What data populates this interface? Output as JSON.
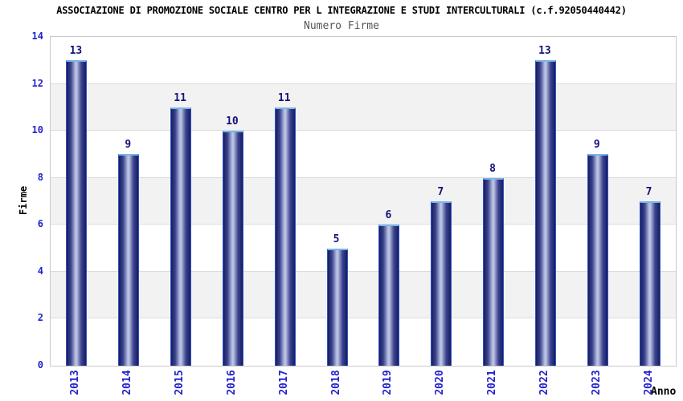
{
  "header": {
    "title": "ASSOCIAZIONE DI PROMOZIONE SOCIALE CENTRO PER L INTEGRAZIONE E STUDI INTERCULTURALI (c.f.92050440442)",
    "subtitle": "Numero Firme"
  },
  "chart_data": {
    "type": "bar",
    "title": "ASSOCIAZIONE DI PROMOZIONE SOCIALE CENTRO PER L INTEGRAZIONE E STUDI INTERCULTURALI (c.f.92050440442)",
    "subtitle": "Numero Firme",
    "categories": [
      "2013",
      "2014",
      "2015",
      "2016",
      "2017",
      "2018",
      "2019",
      "2020",
      "2021",
      "2022",
      "2023",
      "2024"
    ],
    "values": [
      13,
      9,
      11,
      10,
      11,
      5,
      6,
      7,
      8,
      13,
      9,
      7
    ],
    "xlabel": "Anno",
    "ylabel": "Firme",
    "ylim": [
      0,
      14
    ],
    "ytick_step": 2,
    "grid": true,
    "legend": "none",
    "band_fill": "alternating-horizontal",
    "colors": {
      "bar_edge": "#171c5e",
      "bar_mid": "#3c4490",
      "bar_light": "#bac3e2",
      "bar_border": "#2f55c8",
      "bar_top_highlight": "#7ab4ea",
      "tick_label": "#2222cc",
      "value_label": "#12127a",
      "band_gray": "#f2f2f2",
      "band_white": "#ffffff",
      "grid_line": "#dcdcdc",
      "plot_border": "#c9c9c9",
      "title": "#000000",
      "subtitle": "#555555"
    }
  }
}
